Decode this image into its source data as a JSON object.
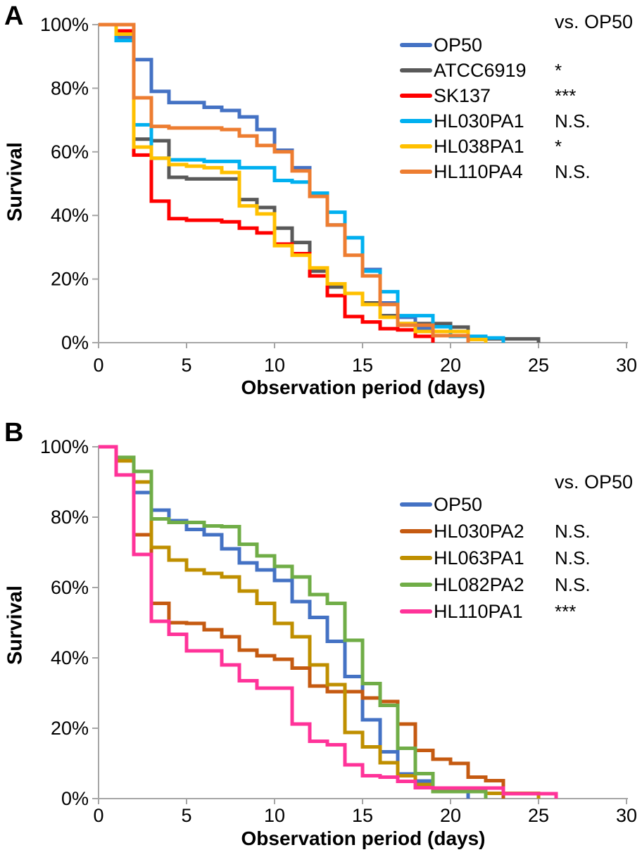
{
  "figure": {
    "panels": [
      {
        "label": "A",
        "comparison_header": "vs. OP50"
      },
      {
        "label": "B",
        "comparison_header": "vs. OP50"
      }
    ],
    "axis_color": "#a6a6a6",
    "significance_note_values": [
      "*",
      "***",
      "N.S."
    ]
  },
  "chart_data": [
    {
      "type": "line",
      "subtype": "step-survival",
      "panel": "A",
      "xlabel": "Observation period (days)",
      "ylabel": "Survival",
      "xlim": [
        0,
        30
      ],
      "ylim": [
        0,
        100
      ],
      "x_ticks": [
        0,
        5,
        10,
        15,
        20,
        25,
        30
      ],
      "y_ticks": [
        "0%",
        "20%",
        "40%",
        "60%",
        "80%",
        "100%"
      ],
      "grid": false,
      "legend_position": "top-right",
      "comparison_header": "vs. OP50",
      "axis_color": "#a6a6a6",
      "x_unit": "days (x = array index)",
      "series": [
        {
          "name": "OP50",
          "color": "#4472C4",
          "significance_vs_OP50": "",
          "values": [
            100,
            96,
            89,
            79,
            75.5,
            75.5,
            74,
            73,
            71,
            67,
            60.5,
            55,
            46.5,
            37,
            33,
            23,
            12.5,
            8,
            4.5,
            0
          ]
        },
        {
          "name": "ATCC6919",
          "color": "#595959",
          "significance_vs_OP50": "*",
          "values": [
            100,
            97.5,
            64,
            63.5,
            52,
            51.5,
            51.5,
            51.5,
            45,
            42.5,
            36,
            31.5,
            22.5,
            17.5,
            15.5,
            12.5,
            8.5,
            6,
            6,
            6,
            4.9,
            1.2,
            1.2,
            1.2,
            1.2,
            0
          ]
        },
        {
          "name": "SK137",
          "color": "#FF0000",
          "significance_vs_OP50": "***",
          "values": [
            100,
            98,
            59,
            44.5,
            39,
            38.5,
            38.5,
            38,
            36,
            34.5,
            31,
            28,
            21,
            14.8,
            8.2,
            6.5,
            4.4,
            4,
            2,
            0
          ]
        },
        {
          "name": "HL030PA1",
          "color": "#00B0F0",
          "significance_vs_OP50": "N.S.",
          "values": [
            100,
            95,
            68.5,
            58,
            57.5,
            57.5,
            57,
            57,
            55,
            55,
            51,
            50.5,
            47,
            41,
            33,
            22.5,
            16,
            8.5,
            8.5,
            5,
            2,
            2,
            1.5,
            0
          ]
        },
        {
          "name": "HL038PA1",
          "color": "#FFC000",
          "significance_vs_OP50": "*",
          "values": [
            100,
            97,
            61.5,
            58,
            56,
            55.5,
            55,
            53.5,
            43,
            40.5,
            30.5,
            27.5,
            23.5,
            18.5,
            15.5,
            12,
            8,
            6,
            3.5,
            3.5,
            3.5,
            1,
            0
          ]
        },
        {
          "name": "HL110PA4",
          "color": "#ED7D31",
          "significance_vs_OP50": "N.S.",
          "values": [
            100,
            100,
            77,
            68,
            67.5,
            67.5,
            67.5,
            67,
            65,
            62,
            60,
            54,
            46,
            37,
            27.5,
            21,
            12,
            5.5,
            5.5,
            2.2,
            2.2,
            0
          ]
        }
      ]
    },
    {
      "type": "line",
      "subtype": "step-survival",
      "panel": "B",
      "xlabel": "Observation period (days)",
      "ylabel": "Survival",
      "xlim": [
        0,
        30
      ],
      "ylim": [
        0,
        100
      ],
      "x_ticks": [
        0,
        5,
        10,
        15,
        20,
        25,
        30
      ],
      "y_ticks": [
        "0%",
        "20%",
        "40%",
        "60%",
        "80%",
        "100%"
      ],
      "grid": false,
      "legend_position": "top-right",
      "comparison_header": "vs. OP50",
      "axis_color": "#a6a6a6",
      "x_unit": "days (x = array index)",
      "series": [
        {
          "name": "OP50",
          "color": "#4472C4",
          "significance_vs_OP50": "",
          "values": [
            100,
            97,
            87,
            82,
            79,
            76.5,
            75,
            71,
            67,
            65,
            62,
            56,
            51.5,
            44.7,
            34.7,
            22.4,
            13.3,
            7,
            5,
            2.9,
            2.9,
            0
          ]
        },
        {
          "name": "HL030PA2",
          "color": "#C55A11",
          "significance_vs_OP50": "N.S.",
          "values": [
            100,
            96,
            75,
            55.5,
            50,
            49.8,
            48,
            46,
            42.2,
            40.6,
            39.6,
            37.1,
            32,
            30.4,
            30.4,
            28.6,
            27.6,
            21.2,
            13.7,
            11.2,
            10,
            6.1,
            5.1,
            0
          ]
        },
        {
          "name": "HL063PA1",
          "color": "#BF8F00",
          "significance_vs_OP50": "N.S.",
          "values": [
            100,
            96,
            90,
            71.4,
            67.8,
            65,
            64,
            63,
            59,
            55.5,
            49.8,
            46,
            38,
            32.4,
            18.8,
            14.7,
            10.2,
            6.5,
            4,
            2,
            2,
            2,
            1.5,
            1.5,
            1.5,
            0
          ]
        },
        {
          "name": "HL082PA2",
          "color": "#70AD47",
          "significance_vs_OP50": "N.S.",
          "values": [
            100,
            97,
            93,
            79.5,
            78.5,
            78.5,
            77.5,
            77.3,
            72.3,
            69,
            66,
            63,
            58,
            55.5,
            45,
            32.7,
            26.5,
            14.3,
            7.1,
            2,
            2,
            2,
            0
          ]
        },
        {
          "name": "HL110PA1",
          "color": "#FF3399",
          "significance_vs_OP50": "***",
          "values": [
            100,
            92,
            69.4,
            50.4,
            46.7,
            42,
            42,
            38,
            33.5,
            31.4,
            31.4,
            21.2,
            16.3,
            15.3,
            9.6,
            6.5,
            6.1,
            4.9,
            3.1,
            3,
            3,
            3,
            3,
            1.4,
            1.4,
            1.4,
            0
          ]
        }
      ]
    }
  ]
}
